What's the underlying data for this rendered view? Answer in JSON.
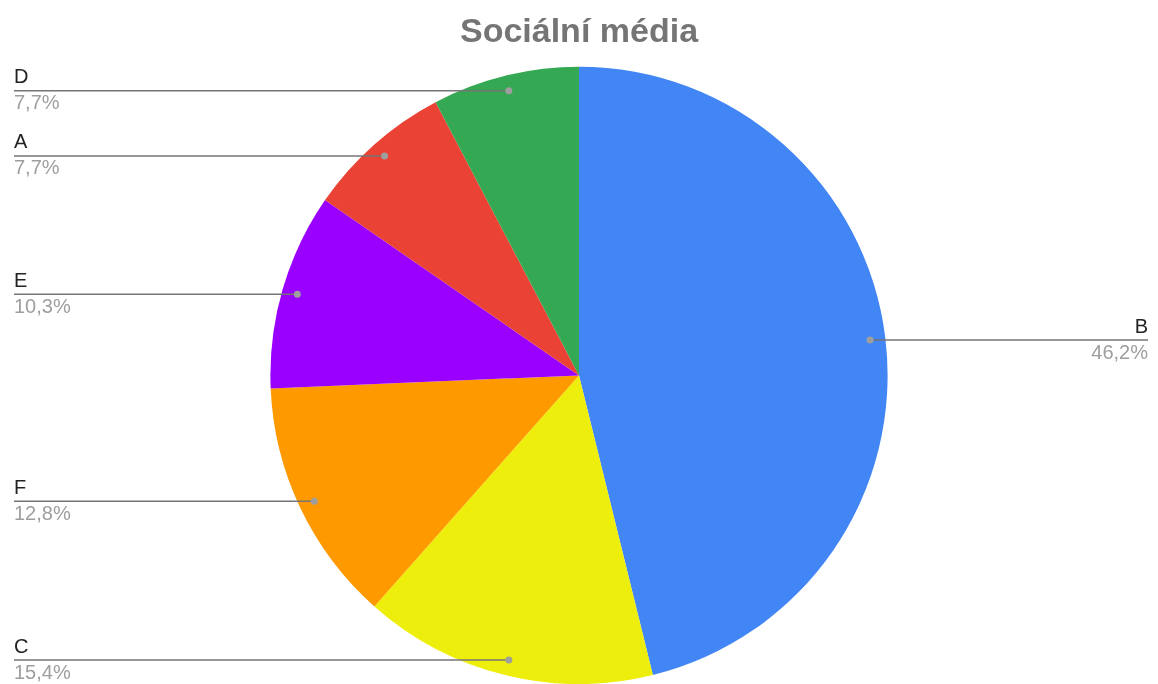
{
  "chart_data": {
    "type": "pie",
    "title": "Sociální média",
    "categories": [
      "B",
      "C",
      "F",
      "E",
      "A",
      "D"
    ],
    "values": [
      46.2,
      15.4,
      12.8,
      10.3,
      7.7,
      7.7
    ],
    "colors": [
      "#4285f4",
      "#eeee0c",
      "#ff9900",
      "#9900ff",
      "#ea4335",
      "#34a853"
    ],
    "value_labels": [
      "46,2%",
      "15,4%",
      "12,8%",
      "10,3%",
      "7,7%",
      "7,7%"
    ],
    "legend": false
  }
}
